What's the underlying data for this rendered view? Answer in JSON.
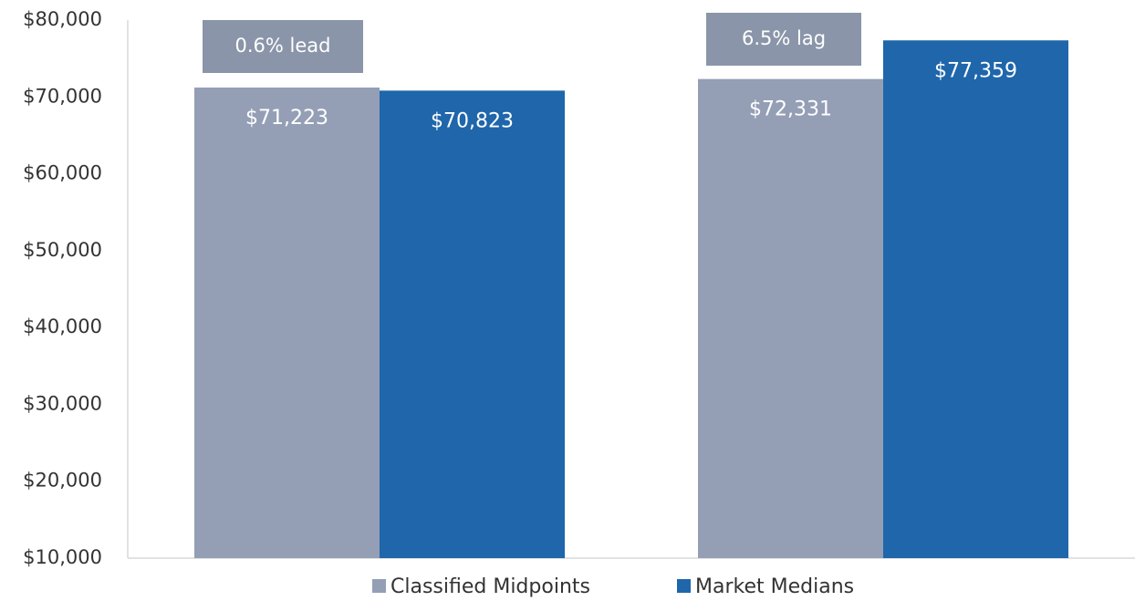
{
  "chart_data": {
    "type": "bar",
    "categories": [
      null,
      null
    ],
    "series": [
      {
        "name": "Classified Midpoints",
        "color": "#949fb6",
        "values": [
          71223,
          72331
        ],
        "value_labels": [
          "$71,223",
          "$72,331"
        ]
      },
      {
        "name": "Market Medians",
        "color": "#1f66ab",
        "values": [
          70823,
          77359
        ],
        "value_labels": [
          "$70,823",
          "$77,359"
        ]
      }
    ],
    "ylim": [
      10000,
      80000
    ],
    "yticks": [
      {
        "value": 10000,
        "label": "$10,000"
      },
      {
        "value": 20000,
        "label": "$20,000"
      },
      {
        "value": 30000,
        "label": "$30,000"
      },
      {
        "value": 40000,
        "label": "$40,000"
      },
      {
        "value": 50000,
        "label": "$50,000"
      },
      {
        "value": 60000,
        "label": "$60,000"
      },
      {
        "value": 70000,
        "label": "$70,000"
      },
      {
        "value": 80000,
        "label": "$80,000"
      }
    ],
    "grid": false,
    "legend": "bottom",
    "annotations": [
      "0.6% lead",
      "6.5% lag"
    ]
  }
}
